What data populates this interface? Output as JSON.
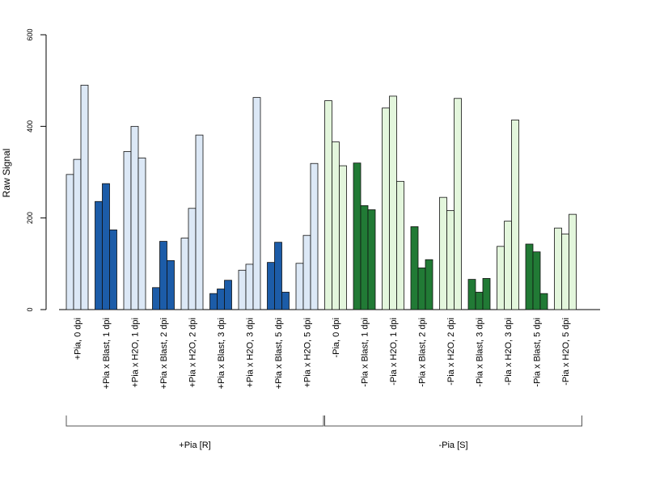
{
  "chart_data": {
    "type": "bar",
    "ylabel": "Raw Signal",
    "ylim": [
      0,
      600
    ],
    "yticks": [
      0,
      200,
      400,
      600
    ],
    "grid": false,
    "categories": [
      "+Pia, 0 dpi",
      "+Pia x Blast, 1 dpi",
      "+Pia x H2O, 1 dpi",
      "+Pia x Blast, 2 dpi",
      "+Pia x H2O, 2 dpi",
      "+Pia x Blast, 3 dpi",
      "+Pia x H2O, 3 dpi",
      "+Pia x Blast, 5 dpi",
      "+Pia x H2O, 5 dpi",
      "-Pia, 0 dpi",
      "-Pia x Blast, 1 dpi",
      "-Pia x H2O, 1 dpi",
      "-Pia x Blast, 2 dpi",
      "-Pia x H2O, 2 dpi",
      "-Pia x Blast, 3 dpi",
      "-Pia x H2O, 3 dpi",
      "-Pia x Blast, 5 dpi",
      "-Pia x H2O, 5 dpi"
    ],
    "replicates": [
      [
        295,
        328,
        490
      ],
      [
        236,
        275,
        174
      ],
      [
        345,
        400,
        331
      ],
      [
        48,
        149,
        107
      ],
      [
        156,
        221,
        381
      ],
      [
        35,
        45,
        64
      ],
      [
        86,
        99,
        463
      ],
      [
        103,
        147,
        38
      ],
      [
        101,
        162,
        319
      ],
      [
        456,
        366,
        314
      ],
      [
        320,
        227,
        218
      ],
      [
        440,
        466,
        280
      ],
      [
        181,
        91,
        109
      ],
      [
        245,
        216,
        461
      ],
      [
        66,
        38,
        68
      ],
      [
        138,
        193,
        414
      ],
      [
        143,
        126,
        35
      ],
      [
        178,
        165,
        208
      ]
    ],
    "fill_types": [
      "light",
      "dark",
      "light",
      "dark",
      "light",
      "dark",
      "light",
      "dark",
      "light",
      "light",
      "dark",
      "light",
      "dark",
      "light",
      "dark",
      "light",
      "dark",
      "light"
    ],
    "colors": {
      "pia_plus_light": "#dce8f6",
      "pia_plus_dark": "#1c5ca8",
      "pia_minus_light": "#e3f6dc",
      "pia_minus_dark": "#217a35"
    },
    "groups": [
      {
        "label": "+Pia [R]",
        "start": 0,
        "end": 8
      },
      {
        "label": "-Pia [S]",
        "start": 9,
        "end": 17
      }
    ]
  }
}
